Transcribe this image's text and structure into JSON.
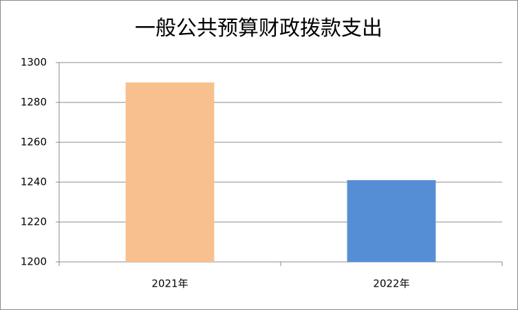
{
  "chart_data": {
    "type": "bar",
    "title": "一般公共预算财政拨款支出",
    "categories": [
      "2021年",
      "2022年"
    ],
    "values": [
      1290,
      1241
    ],
    "colors": [
      "#f8c08f",
      "#558ed5"
    ],
    "ylim": [
      1200,
      1300
    ],
    "yticks": [
      1200,
      1220,
      1240,
      1260,
      1280,
      1300
    ],
    "grid": true
  }
}
